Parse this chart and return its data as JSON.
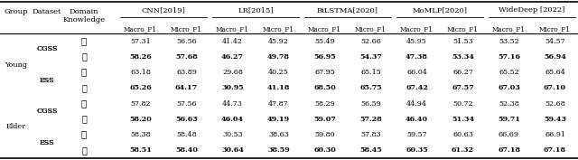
{
  "group_headers": [
    "CNN[2019]",
    "LR[2015]",
    "BiLSTMA[2020]",
    "MoMLP[2020]",
    "WideDeep [2022]"
  ],
  "sub_headers": [
    "Macro_F1",
    "Micro_F1",
    "Macro_F1",
    "Micro_F1",
    "Macro_F1",
    "Micro_F1",
    "Macro_F1",
    "Micro_F1",
    "Macro_F1",
    "Micro_F1"
  ],
  "rows": [
    [
      "Young",
      "CGSS",
      "x",
      "57.31",
      "56.56",
      "41.42",
      "45.92",
      "55.49",
      "52.66",
      "45.95",
      "51.53",
      "53.52",
      "54.57"
    ],
    [
      "",
      "CGSS",
      "v",
      "58.26",
      "57.68",
      "46.27",
      "49.78",
      "56.95",
      "54.37",
      "47.38",
      "53.34",
      "57.16",
      "56.94"
    ],
    [
      "",
      "ESS",
      "x",
      "63.18",
      "63.89",
      "29.68",
      "40.25",
      "67.95",
      "65.15",
      "66.04",
      "66.27",
      "65.52",
      "65.64"
    ],
    [
      "",
      "ESS",
      "v",
      "65.26",
      "64.17",
      "30.95",
      "41.18",
      "68.50",
      "65.75",
      "67.42",
      "67.57",
      "67.03",
      "67.10"
    ],
    [
      "Elder",
      "CGSS",
      "x",
      "57.82",
      "57.56",
      "44.73",
      "47.87",
      "58.29",
      "56.59",
      "44.94",
      "50.72",
      "52.38",
      "52.68"
    ],
    [
      "",
      "CGSS",
      "v",
      "58.20",
      "56.63",
      "46.04",
      "49.19",
      "59.07",
      "57.28",
      "46.40",
      "51.34",
      "59.71",
      "59.43"
    ],
    [
      "",
      "ESS",
      "x",
      "58.38",
      "58.48",
      "30.53",
      "38.63",
      "59.80",
      "57.83",
      "59.57",
      "60.63",
      "66.69",
      "66.91"
    ],
    [
      "",
      "ESS",
      "v",
      "58.51",
      "58.40",
      "30.64",
      "38.59",
      "60.30",
      "58.45",
      "60.35",
      "61.32",
      "67.18",
      "67.18"
    ]
  ],
  "bold_rows": [
    1,
    3,
    5,
    7
  ],
  "fontsize": 5.8,
  "header_fontsize": 6.0,
  "subheader_fontsize": 5.2
}
